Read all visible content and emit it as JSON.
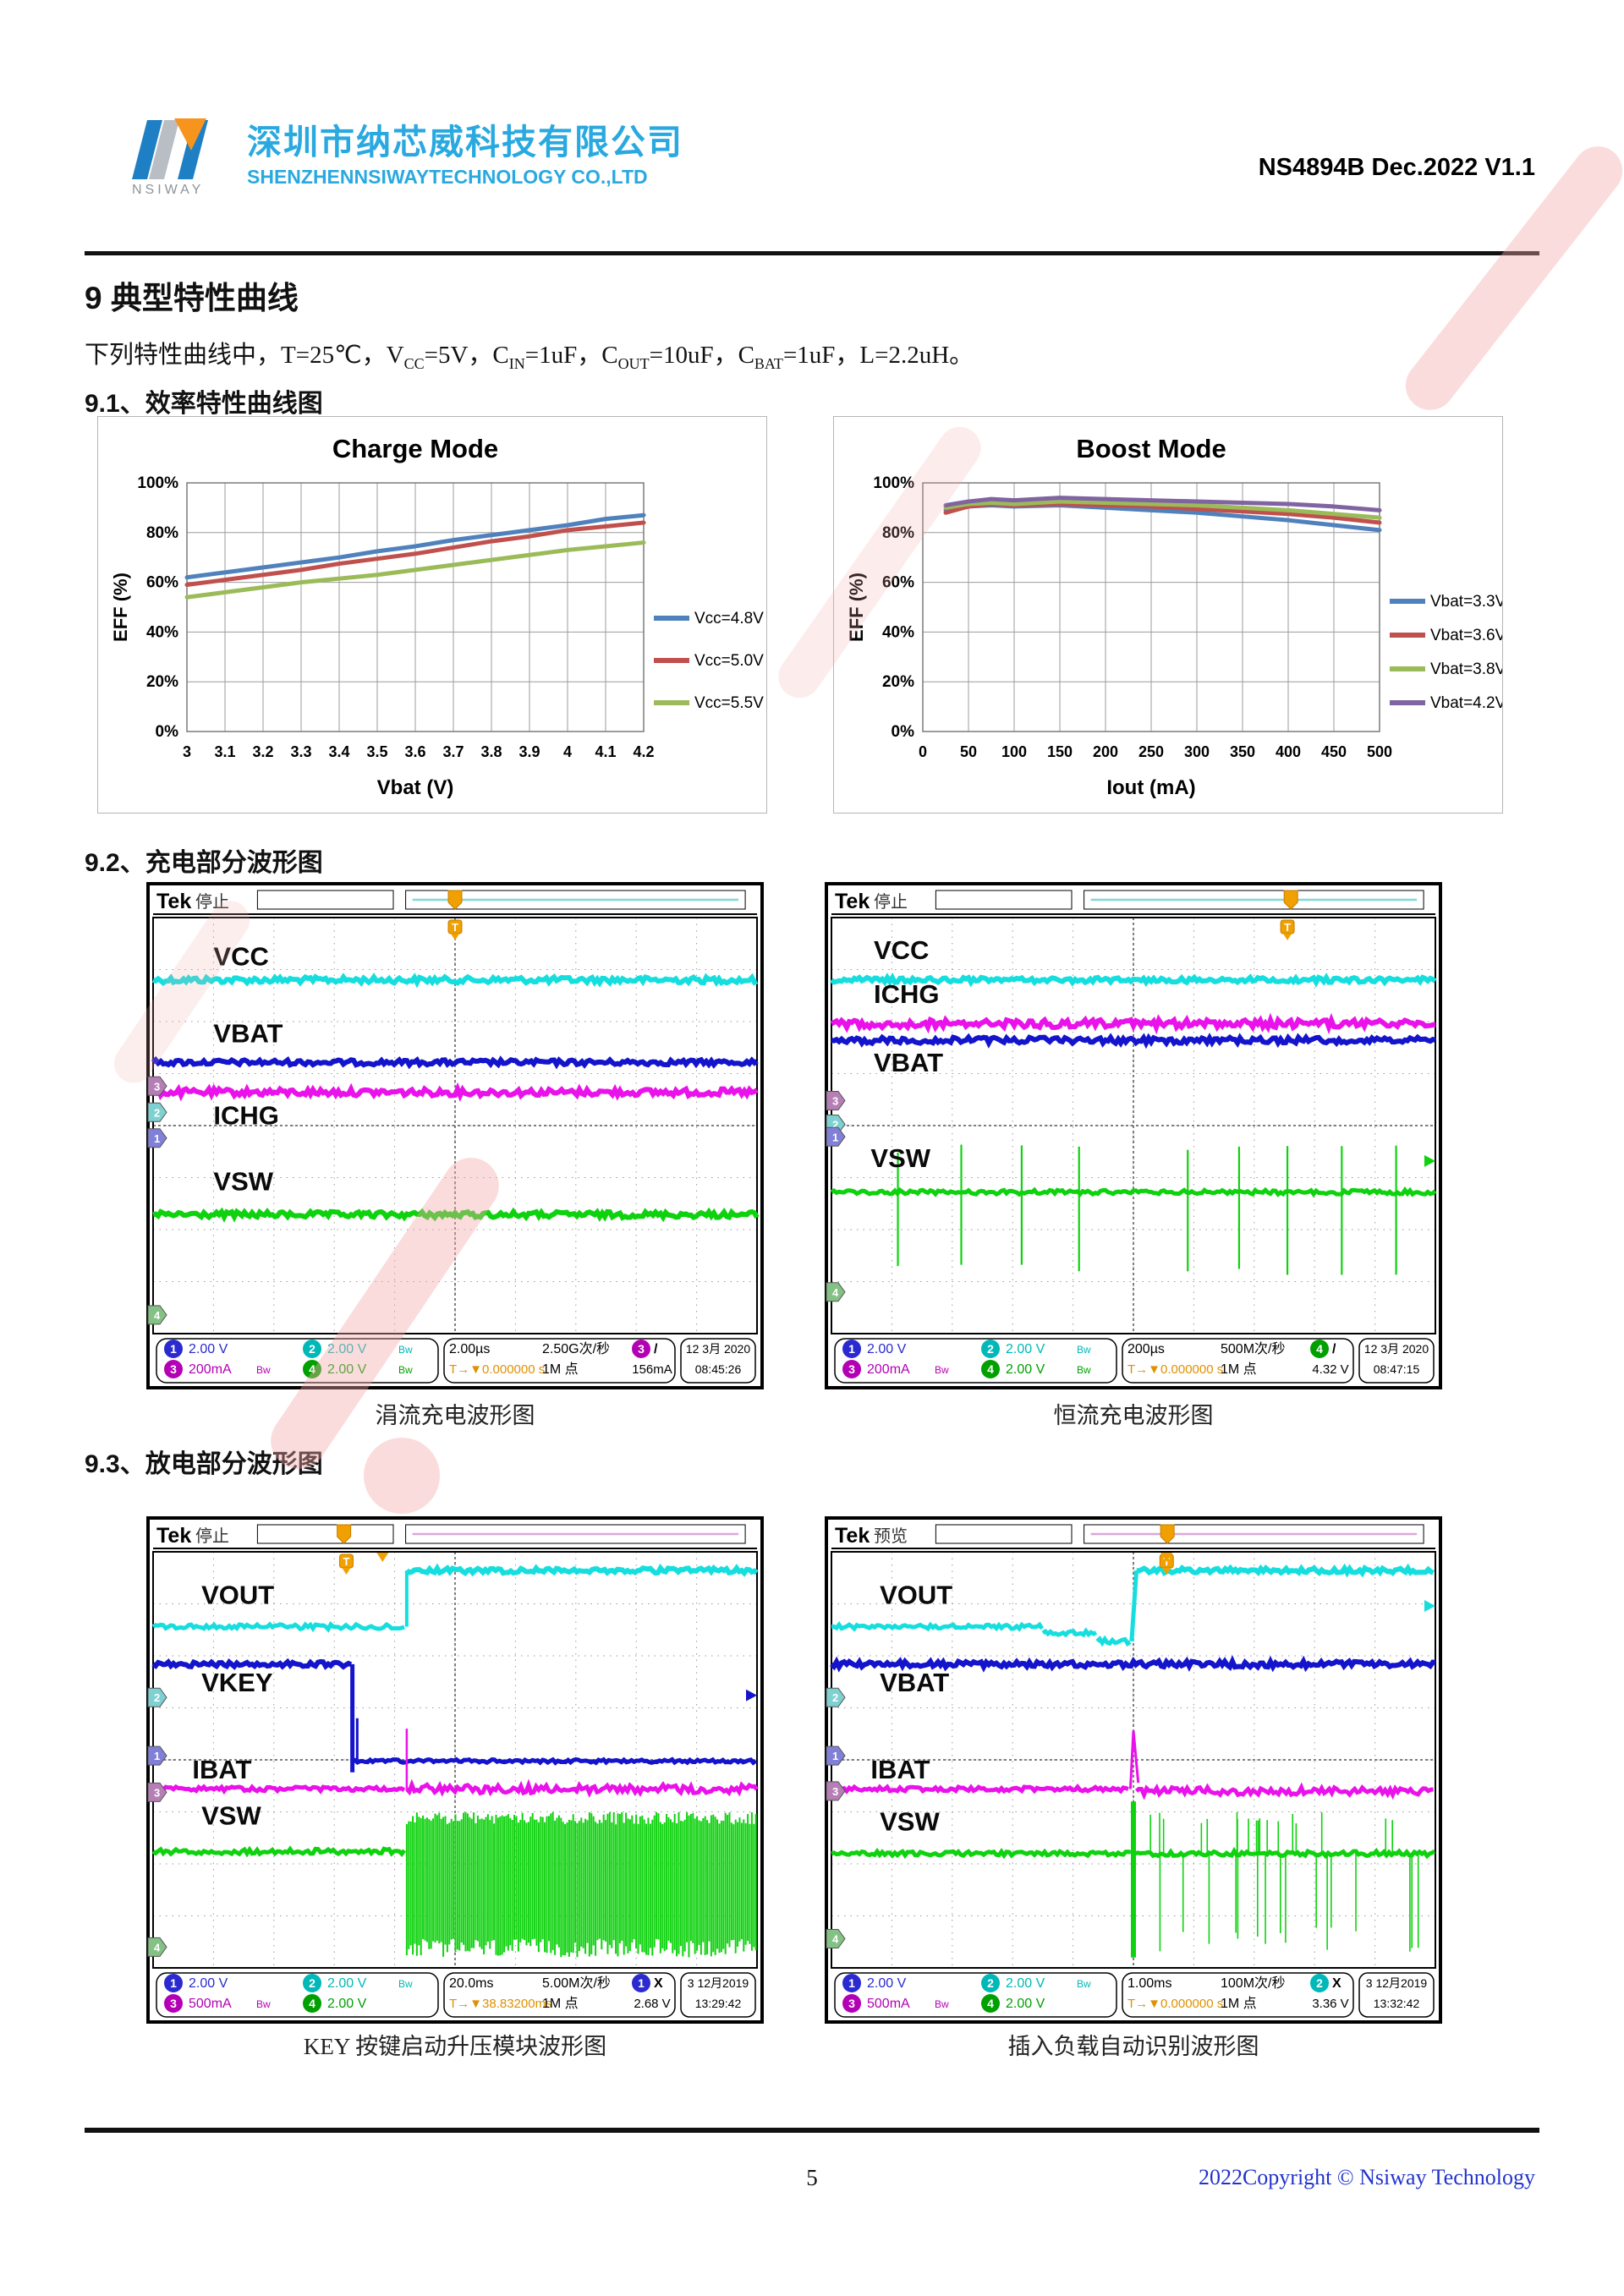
{
  "header": {
    "company_cn": "深圳市纳芯威科技有限公司",
    "company_en": "SHENZHENNSIWAYTECHNOLOGY CO.,LTD",
    "logo_text": "NSIWAY",
    "doc_ref": "NS4894B Dec.2022 V1.1"
  },
  "headings": {
    "s9": "9 典型特性曲线",
    "s91": "9.1、效率特性曲线图",
    "s92": "9.2、充电部分波形图",
    "s93": "9.3、放电部分波形图"
  },
  "conditions": [
    {
      "t": "下列特性曲线中，T=25℃，V"
    },
    {
      "s": "CC"
    },
    {
      "t": "=5V，C"
    },
    {
      "s": "IN"
    },
    {
      "t": "=1uF，C"
    },
    {
      "s": "OUT"
    },
    {
      "t": "=10uF，C"
    },
    {
      "s": "BAT"
    },
    {
      "t": "=1uF，L=2.2uH。"
    }
  ],
  "chart_data": [
    {
      "type": "line",
      "title": "Charge Mode",
      "xlabel": "Vbat (V)",
      "ylabel": "EFF (%)",
      "x": [
        3,
        3.1,
        3.2,
        3.3,
        3.4,
        3.5,
        3.6,
        3.7,
        3.8,
        3.9,
        4,
        4.1,
        4.2
      ],
      "xticks": [
        3,
        3.1,
        3.2,
        3.3,
        3.4,
        3.5,
        3.6,
        3.7,
        3.8,
        3.9,
        4,
        4.1,
        4.2
      ],
      "xdomain": [
        3,
        4.2
      ],
      "ydomain": [
        0,
        100
      ],
      "yticks": [
        0,
        20,
        40,
        60,
        80,
        100
      ],
      "ytick_suffix": "%",
      "grid": true,
      "legend_position": "right",
      "series": [
        {
          "name": "Vcc=4.8V",
          "color": "#4f81bd",
          "values": [
            62,
            64,
            66,
            68,
            70,
            72.5,
            74.5,
            77,
            79,
            81,
            83,
            85.5,
            87
          ]
        },
        {
          "name": "Vcc=5.0V",
          "color": "#c0504d",
          "values": [
            59,
            61,
            63,
            65,
            67.5,
            69.5,
            71.5,
            74,
            76.5,
            78.5,
            81,
            82.5,
            84
          ]
        },
        {
          "name": "Vcc=5.5V",
          "color": "#9bbb59",
          "values": [
            54,
            56,
            58,
            60,
            61.5,
            63,
            65,
            67,
            69,
            71,
            73,
            74.5,
            76
          ]
        }
      ]
    },
    {
      "type": "line",
      "title": "Boost Mode",
      "xlabel": "Iout (mA)",
      "ylabel": "EFF (%)",
      "x": [
        25,
        50,
        75,
        100,
        150,
        200,
        250,
        300,
        350,
        400,
        450,
        500
      ],
      "xticks": [
        0,
        50,
        100,
        150,
        200,
        250,
        300,
        350,
        400,
        450,
        500
      ],
      "xdomain": [
        0,
        500
      ],
      "ydomain": [
        0,
        100
      ],
      "yticks": [
        0,
        20,
        40,
        60,
        80,
        100
      ],
      "ytick_suffix": "%",
      "grid": true,
      "legend_position": "right",
      "series": [
        {
          "name": "Vbat=3.3V",
          "color": "#4f81bd",
          "values": [
            89,
            90.5,
            91,
            90.5,
            91,
            90,
            89,
            88,
            86.5,
            85,
            83,
            81
          ]
        },
        {
          "name": "Vbat=3.6V",
          "color": "#c0504d",
          "values": [
            88,
            90.5,
            91.5,
            91,
            91.5,
            91,
            90.5,
            89.5,
            88.5,
            87.5,
            86,
            84
          ]
        },
        {
          "name": "Vbat=3.8V",
          "color": "#9bbb59",
          "values": [
            90,
            91.5,
            92,
            91.5,
            92.5,
            92,
            91.5,
            91,
            90,
            89,
            87.5,
            86
          ]
        },
        {
          "name": "Vbat=4.2V",
          "color": "#8064a2",
          "values": [
            91,
            92.5,
            93.5,
            93,
            94,
            93.5,
            93,
            92.5,
            92,
            91.5,
            90.5,
            89
          ]
        }
      ]
    }
  ],
  "scopes": [
    {
      "brand": "Tek",
      "status": "停止",
      "caption": "涓流充电波形图",
      "trace_labels": [
        "VCC",
        "VBAT",
        "ICHG",
        "VSW"
      ],
      "channels": [
        {
          "n": "1",
          "value": "2.00 V",
          "bw": false
        },
        {
          "n": "2",
          "value": "2.00 V",
          "bw": true
        },
        {
          "n": "3",
          "value": "200mA",
          "bw": true
        },
        {
          "n": "4",
          "value": "2.00 V",
          "bw": true
        }
      ],
      "timebase": "2.00µs",
      "trig_pos_label": "T→▼0.000000 s",
      "sample_rate": "2.50G次/秒",
      "record": "1M 点",
      "trigger": {
        "ch": "3",
        "glyph": "/",
        "value": "156mA"
      },
      "date": "12 3月 2020",
      "time": "08:45:26"
    },
    {
      "brand": "Tek",
      "status": "停止",
      "caption": "恒流充电波形图",
      "trace_labels": [
        "VCC",
        "ICHG",
        "VBAT",
        "VSW"
      ],
      "channels": [
        {
          "n": "1",
          "value": "2.00 V",
          "bw": false
        },
        {
          "n": "2",
          "value": "2.00 V",
          "bw": true
        },
        {
          "n": "3",
          "value": "200mA",
          "bw": true
        },
        {
          "n": "4",
          "value": "2.00 V",
          "bw": true
        }
      ],
      "timebase": "200µs",
      "trig_pos_label": "T→▼0.000000 s",
      "sample_rate": "500M次/秒",
      "record": "1M 点",
      "trigger": {
        "ch": "4",
        "glyph": "/",
        "value": "4.32 V"
      },
      "date": "12 3月 2020",
      "time": "08:47:15"
    },
    {
      "brand": "Tek",
      "status": "停止",
      "caption": "KEY 按键启动升压模块波形图",
      "trace_labels": [
        "VOUT",
        "VKEY",
        "IBAT",
        "VSW"
      ],
      "channels": [
        {
          "n": "1",
          "value": "2.00 V",
          "bw": false
        },
        {
          "n": "2",
          "value": "2.00 V",
          "bw": true
        },
        {
          "n": "3",
          "value": "500mA",
          "bw": true
        },
        {
          "n": "4",
          "value": "2.00 V",
          "bw": false
        }
      ],
      "timebase": "20.0ms",
      "trig_pos_label": "T→▼38.83200ms",
      "sample_rate": "5.00M次/秒",
      "record": "1M 点",
      "trigger": {
        "ch": "1",
        "glyph": "X",
        "value": "2.68 V"
      },
      "date": "3 12月2019",
      "time": "13:29:42"
    },
    {
      "brand": "Tek",
      "status": "预览",
      "caption": "插入负载自动识别波形图",
      "trace_labels": [
        "VOUT",
        "VBAT",
        "IBAT",
        "VSW"
      ],
      "channels": [
        {
          "n": "1",
          "value": "2.00 V",
          "bw": false
        },
        {
          "n": "2",
          "value": "2.00 V",
          "bw": true
        },
        {
          "n": "3",
          "value": "500mA",
          "bw": true
        },
        {
          "n": "4",
          "value": "2.00 V",
          "bw": false
        }
      ],
      "timebase": "1.00ms",
      "trig_pos_label": "T→▼0.000000 s",
      "sample_rate": "100M次/秒",
      "record": "1M 点",
      "trigger": {
        "ch": "2",
        "glyph": "X",
        "value": "3.36 V"
      },
      "date": "3 12月2019",
      "time": "13:32:42"
    }
  ],
  "misc": {
    "bw_glyph": "Bw"
  },
  "colors": {
    "brand_blue": "#29a9e0",
    "logo_orange": "#f7941d",
    "trace_cyan": "#17dede",
    "trace_blue": "#1414cc",
    "trace_magenta": "#ea12ea",
    "trace_green": "#0fd20f",
    "trigger_orange": "#f0a000",
    "copyright_blue": "#2233cc",
    "watermark_pink": "#f6a8a8"
  },
  "footer": {
    "page_number": "5",
    "copyright": "2022Copyright © Nsiway Technology"
  }
}
